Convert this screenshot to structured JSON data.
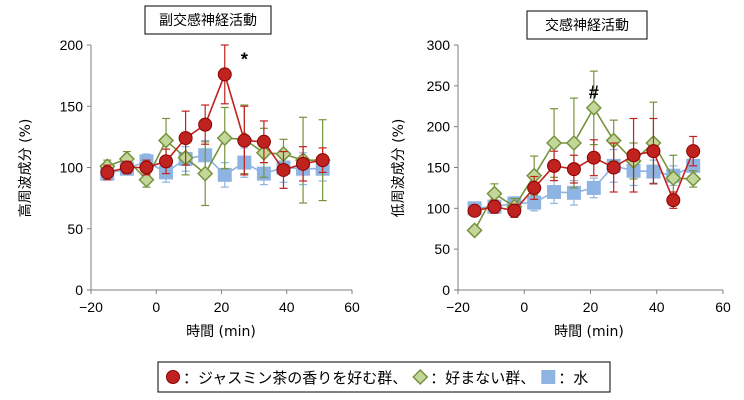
{
  "chart_data": [
    {
      "type": "line",
      "title": "副交感神経活動",
      "xlabel": "時間 (min)",
      "ylabel": "高周波成分 (%)",
      "xlim": [
        -20,
        60
      ],
      "ylim": [
        0,
        200
      ],
      "xticks": [
        -20,
        0,
        20,
        40,
        60
      ],
      "yticks": [
        0,
        50,
        100,
        150,
        200
      ],
      "xtick_labels": [
        "−20",
        "0",
        "20",
        "40",
        "60"
      ],
      "ytick_labels": [
        "0",
        "50",
        "100",
        "150",
        "200"
      ],
      "grid": false,
      "series": [
        {
          "name": "ジャスミン茶の香りを好む群",
          "marker": "circle",
          "color": "#C0221F",
          "x": [
            -15,
            -9,
            -3,
            3,
            9,
            15,
            21,
            27,
            33,
            39,
            45,
            51
          ],
          "y": [
            96,
            100,
            100,
            105,
            124,
            135,
            176,
            122,
            121,
            98,
            103,
            106
          ],
          "err": [
            6,
            5,
            6,
            10,
            22,
            16,
            24,
            28,
            17,
            15,
            14,
            10
          ]
        },
        {
          "name": "好まない群",
          "marker": "diamond",
          "color": "#76933C",
          "x": [
            -15,
            -9,
            -3,
            3,
            9,
            15,
            21,
            27,
            33,
            39,
            45,
            51
          ],
          "y": [
            101,
            107,
            90,
            122,
            108,
            95,
            124,
            123,
            112,
            111,
            106,
            106
          ],
          "err": [
            5,
            6,
            6,
            18,
            14,
            26,
            25,
            28,
            20,
            12,
            35,
            33
          ]
        },
        {
          "name": "水",
          "marker": "square",
          "color": "#8EB4E3",
          "x": [
            -15,
            -9,
            -3,
            3,
            9,
            15,
            21,
            27,
            33,
            39,
            45,
            51
          ],
          "y": [
            95,
            99,
            105,
            96,
            107,
            110,
            94,
            104,
            95,
            100,
            99,
            99
          ],
          "err": [
            4,
            5,
            6,
            8,
            10,
            12,
            10,
            12,
            9,
            12,
            13,
            10
          ]
        }
      ],
      "annotations": [
        {
          "text": "*",
          "x": 27,
          "y": 188
        }
      ]
    },
    {
      "type": "line",
      "title": "交感神経活動",
      "xlabel": "時間 (min)",
      "ylabel": "低周波成分 (%)",
      "xlim": [
        -20,
        60
      ],
      "ylim": [
        0,
        300
      ],
      "xticks": [
        -20,
        0,
        20,
        40,
        60
      ],
      "yticks": [
        0,
        50,
        100,
        150,
        200,
        250,
        300
      ],
      "xtick_labels": [
        "−20",
        "0",
        "20",
        "40",
        "60"
      ],
      "ytick_labels": [
        "0",
        "50",
        "100",
        "150",
        "200",
        "250",
        "300"
      ],
      "grid": false,
      "series": [
        {
          "name": "ジャスミン茶の香りを好む群",
          "marker": "circle",
          "color": "#C0221F",
          "x": [
            -15,
            -9,
            -3,
            3,
            9,
            15,
            21,
            27,
            33,
            39,
            45,
            51
          ],
          "y": [
            97,
            102,
            97,
            125,
            152,
            148,
            162,
            150,
            165,
            170,
            110,
            170
          ],
          "err": [
            5,
            8,
            8,
            14,
            18,
            17,
            22,
            30,
            45,
            40,
            10,
            18
          ]
        },
        {
          "name": "好まない群",
          "marker": "diamond",
          "color": "#76933C",
          "x": [
            -15,
            -9,
            -3,
            3,
            9,
            15,
            21,
            27,
            33,
            39,
            45,
            51
          ],
          "y": [
            73,
            118,
            102,
            140,
            180,
            180,
            223,
            183,
            158,
            180,
            137,
            136
          ],
          "err": [
            5,
            12,
            10,
            24,
            42,
            55,
            45,
            25,
            22,
            50,
            28,
            10
          ]
        },
        {
          "name": "水",
          "marker": "square",
          "color": "#8EB4E3",
          "x": [
            -15,
            -9,
            -3,
            3,
            9,
            15,
            21,
            27,
            33,
            39,
            45,
            51
          ],
          "y": [
            100,
            102,
            106,
            107,
            120,
            119,
            125,
            152,
            146,
            145,
            140,
            152
          ],
          "err": [
            5,
            6,
            8,
            10,
            14,
            15,
            12,
            20,
            18,
            14,
            12,
            15
          ]
        }
      ],
      "annotations": [
        {
          "text": "#",
          "x": 21,
          "y": 242
        }
      ]
    }
  ],
  "legend": {
    "items": [
      {
        "marker": "circle",
        "color": "#C0221F",
        "label": "：ジャスミン茶の香りを好む群、"
      },
      {
        "marker": "diamond",
        "color": "#76933C",
        "label": "：好まない群、"
      },
      {
        "marker": "square",
        "color": "#8EB4E3",
        "label": "：水"
      }
    ]
  }
}
